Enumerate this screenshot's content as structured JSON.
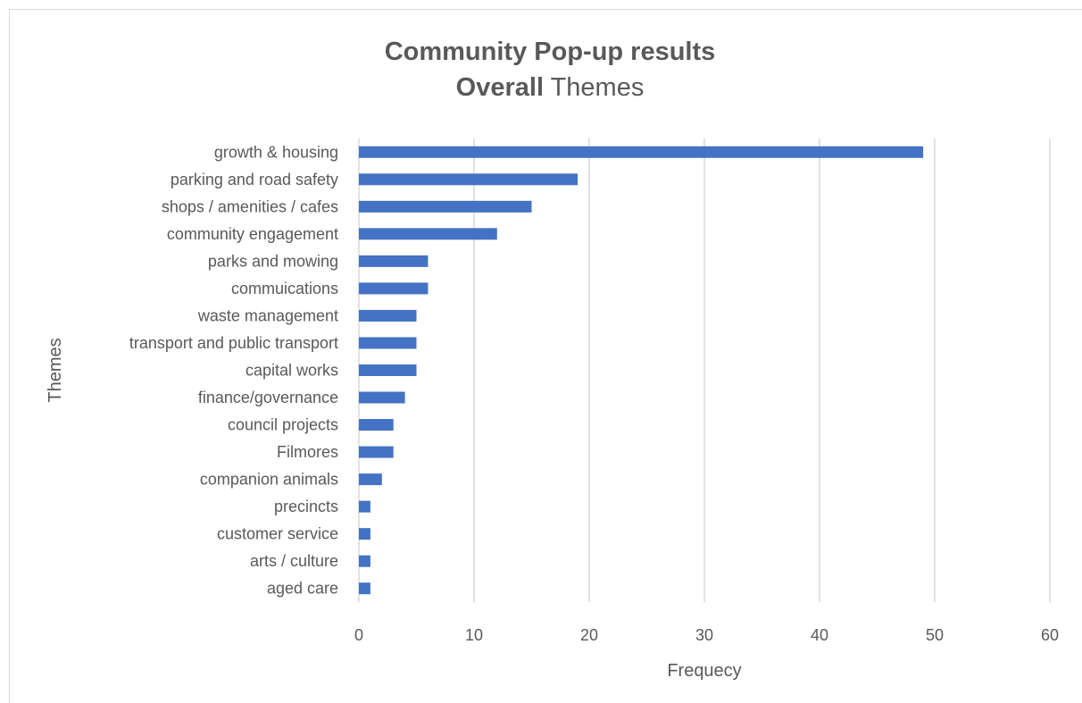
{
  "chart_data": {
    "type": "bar",
    "orientation": "horizontal",
    "title": "Community Pop-up results",
    "subtitle_bold": "Overall",
    "subtitle_rest": "Themes",
    "xlabel": "Frequecy",
    "ylabel": "Themes",
    "xlim": [
      0,
      60
    ],
    "xticks": [
      0,
      10,
      20,
      30,
      40,
      50,
      60
    ],
    "grid": true,
    "legend": "none",
    "bar_color": "#4472c4",
    "categories": [
      "growth & housing",
      "parking and road safety",
      "shops / amenities / cafes",
      "community engagement",
      "parks and mowing",
      "commuications",
      "waste management",
      "transport and public transport",
      "capital works",
      "finance/governance",
      "council projects",
      "Filmores",
      "companion animals",
      "precincts",
      "customer service",
      "arts / culture",
      "aged care"
    ],
    "values": [
      49,
      19,
      15,
      12,
      6,
      6,
      5,
      5,
      5,
      4,
      3,
      3,
      2,
      1,
      1,
      1,
      1
    ]
  }
}
